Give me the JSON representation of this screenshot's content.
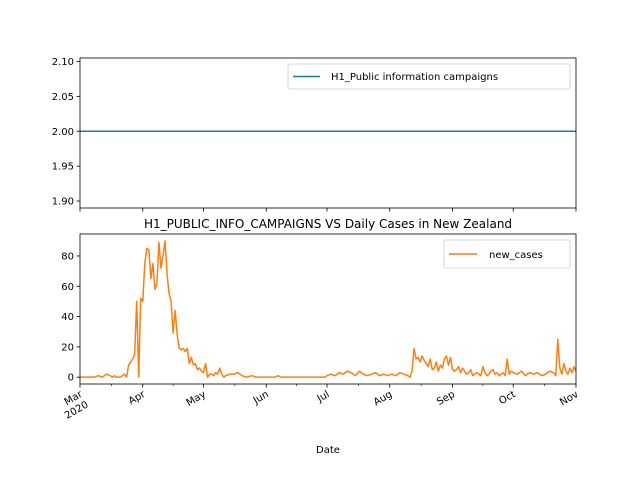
{
  "chart_data": [
    {
      "type": "line",
      "title": "",
      "xlabel": "",
      "ylabel": "",
      "ylim": [
        1.89,
        2.105
      ],
      "yticks": [
        1.9,
        1.95,
        2.0,
        2.05,
        2.1
      ],
      "ytick_labels": [
        "1.90",
        "1.95",
        "2.00",
        "2.05",
        "2.10"
      ],
      "legend_position": "top-right",
      "grid": false,
      "series": [
        {
          "name": "H1_Public information campaigns",
          "color": "#1f77b4",
          "points": [
            [
              "2020-03-01",
              2.0
            ],
            [
              "2020-11-01",
              2.0
            ]
          ]
        }
      ]
    },
    {
      "type": "line",
      "title": "H1_PUBLIC_INFO_CAMPAIGNS VS Daily Cases in New Zealand",
      "xlabel": "Date",
      "ylabel": "",
      "ylim": [
        -4.5,
        94.5
      ],
      "yticks": [
        0,
        20,
        40,
        60,
        80
      ],
      "ytick_labels": [
        "0",
        "20",
        "40",
        "60",
        "80"
      ],
      "xlim": [
        "2020-03-01",
        "2020-11-01"
      ],
      "xticks": [
        "2020-03-01",
        "2020-04-01",
        "2020-05-01",
        "2020-06-01",
        "2020-07-01",
        "2020-08-01",
        "2020-09-01",
        "2020-10-01",
        "2020-11-01"
      ],
      "xtick_labels": [
        "Mar\n2020",
        "Apr",
        "May",
        "Jun",
        "Jul",
        "Aug",
        "Sep",
        "Oct",
        "Nov"
      ],
      "legend_position": "top-right",
      "grid": false,
      "series": [
        {
          "name": "new_cases",
          "color": "#ff7f0e",
          "points": [
            [
              "2020-03-01",
              0
            ],
            [
              "2020-03-05",
              0
            ],
            [
              "2020-03-08",
              0
            ],
            [
              "2020-03-10",
              1
            ],
            [
              "2020-03-12",
              0
            ],
            [
              "2020-03-14",
              2
            ],
            [
              "2020-03-16",
              1
            ],
            [
              "2020-03-17",
              0
            ],
            [
              "2020-03-18",
              1
            ],
            [
              "2020-03-19",
              0
            ],
            [
              "2020-03-20",
              0
            ],
            [
              "2020-03-21",
              0
            ],
            [
              "2020-03-22",
              1
            ],
            [
              "2020-03-23",
              2
            ],
            [
              "2020-03-24",
              0
            ],
            [
              "2020-03-25",
              8
            ],
            [
              "2020-03-26",
              10
            ],
            [
              "2020-03-27",
              12
            ],
            [
              "2020-03-28",
              15
            ],
            [
              "2020-03-29",
              50
            ],
            [
              "2020-03-30",
              0
            ],
            [
              "2020-03-31",
              52
            ],
            [
              "2020-04-01",
              50
            ],
            [
              "2020-04-02",
              75
            ],
            [
              "2020-04-03",
              85
            ],
            [
              "2020-04-04",
              84
            ],
            [
              "2020-04-05",
              65
            ],
            [
              "2020-04-06",
              75
            ],
            [
              "2020-04-07",
              58
            ],
            [
              "2020-04-08",
              62
            ],
            [
              "2020-04-09",
              89
            ],
            [
              "2020-04-10",
              72
            ],
            [
              "2020-04-11",
              80
            ],
            [
              "2020-04-12",
              90
            ],
            [
              "2020-04-13",
              68
            ],
            [
              "2020-04-14",
              55
            ],
            [
              "2020-04-15",
              50
            ],
            [
              "2020-04-16",
              29
            ],
            [
              "2020-04-17",
              44
            ],
            [
              "2020-04-18",
              28
            ],
            [
              "2020-04-19",
              19
            ],
            [
              "2020-04-20",
              18
            ],
            [
              "2020-04-21",
              19
            ],
            [
              "2020-04-22",
              17
            ],
            [
              "2020-04-23",
              19
            ],
            [
              "2020-04-24",
              9
            ],
            [
              "2020-04-25",
              13
            ],
            [
              "2020-04-26",
              8
            ],
            [
              "2020-04-27",
              9
            ],
            [
              "2020-04-28",
              5
            ],
            [
              "2020-04-29",
              6
            ],
            [
              "2020-04-30",
              4
            ],
            [
              "2020-05-01",
              3
            ],
            [
              "2020-05-02",
              9
            ],
            [
              "2020-05-03",
              0
            ],
            [
              "2020-05-04",
              2
            ],
            [
              "2020-05-05",
              2
            ],
            [
              "2020-05-06",
              1
            ],
            [
              "2020-05-07",
              3
            ],
            [
              "2020-05-08",
              2
            ],
            [
              "2020-05-09",
              6
            ],
            [
              "2020-05-10",
              2
            ],
            [
              "2020-05-11",
              0
            ],
            [
              "2020-05-12",
              1
            ],
            [
              "2020-05-14",
              2
            ],
            [
              "2020-05-16",
              2
            ],
            [
              "2020-05-18",
              3
            ],
            [
              "2020-05-20",
              1
            ],
            [
              "2020-05-22",
              0
            ],
            [
              "2020-05-25",
              1
            ],
            [
              "2020-05-27",
              0
            ],
            [
              "2020-05-30",
              0
            ],
            [
              "2020-06-02",
              0
            ],
            [
              "2020-06-05",
              0
            ],
            [
              "2020-06-07",
              1
            ],
            [
              "2020-06-08",
              0
            ],
            [
              "2020-06-10",
              0
            ],
            [
              "2020-06-14",
              0
            ],
            [
              "2020-06-18",
              0
            ],
            [
              "2020-06-20",
              0
            ],
            [
              "2020-06-24",
              0
            ],
            [
              "2020-06-27",
              0
            ],
            [
              "2020-06-30",
              0
            ],
            [
              "2020-07-01",
              1
            ],
            [
              "2020-07-03",
              2
            ],
            [
              "2020-07-05",
              1
            ],
            [
              "2020-07-07",
              3
            ],
            [
              "2020-07-09",
              2
            ],
            [
              "2020-07-11",
              4
            ],
            [
              "2020-07-13",
              3
            ],
            [
              "2020-07-15",
              1
            ],
            [
              "2020-07-17",
              4
            ],
            [
              "2020-07-19",
              2
            ],
            [
              "2020-07-21",
              1
            ],
            [
              "2020-07-23",
              2
            ],
            [
              "2020-07-25",
              3
            ],
            [
              "2020-07-27",
              1
            ],
            [
              "2020-07-29",
              2
            ],
            [
              "2020-07-31",
              1
            ],
            [
              "2020-08-02",
              2
            ],
            [
              "2020-08-04",
              1
            ],
            [
              "2020-08-06",
              3
            ],
            [
              "2020-08-08",
              2
            ],
            [
              "2020-08-10",
              1
            ],
            [
              "2020-08-11",
              0
            ],
            [
              "2020-08-12",
              4
            ],
            [
              "2020-08-13",
              19
            ],
            [
              "2020-08-14",
              12
            ],
            [
              "2020-08-15",
              13
            ],
            [
              "2020-08-16",
              10
            ],
            [
              "2020-08-17",
              14
            ],
            [
              "2020-08-18",
              11
            ],
            [
              "2020-08-19",
              9
            ],
            [
              "2020-08-20",
              7
            ],
            [
              "2020-08-21",
              12
            ],
            [
              "2020-08-22",
              5
            ],
            [
              "2020-08-23",
              6
            ],
            [
              "2020-08-24",
              10
            ],
            [
              "2020-08-25",
              4
            ],
            [
              "2020-08-26",
              8
            ],
            [
              "2020-08-27",
              6
            ],
            [
              "2020-08-28",
              12
            ],
            [
              "2020-08-29",
              14
            ],
            [
              "2020-08-30",
              8
            ],
            [
              "2020-08-31",
              13
            ],
            [
              "2020-09-01",
              5
            ],
            [
              "2020-09-02",
              4
            ],
            [
              "2020-09-03",
              5
            ],
            [
              "2020-09-04",
              7
            ],
            [
              "2020-09-05",
              3
            ],
            [
              "2020-09-06",
              6
            ],
            [
              "2020-09-07",
              4
            ],
            [
              "2020-09-08",
              2
            ],
            [
              "2020-09-09",
              3
            ],
            [
              "2020-09-10",
              5
            ],
            [
              "2020-09-11",
              1
            ],
            [
              "2020-09-12",
              2
            ],
            [
              "2020-09-13",
              3
            ],
            [
              "2020-09-14",
              2
            ],
            [
              "2020-09-15",
              1
            ],
            [
              "2020-09-16",
              7
            ],
            [
              "2020-09-17",
              3
            ],
            [
              "2020-09-18",
              1
            ],
            [
              "2020-09-19",
              2
            ],
            [
              "2020-09-20",
              4
            ],
            [
              "2020-09-21",
              5
            ],
            [
              "2020-09-22",
              2
            ],
            [
              "2020-09-23",
              3
            ],
            [
              "2020-09-24",
              1
            ],
            [
              "2020-09-25",
              2
            ],
            [
              "2020-09-26",
              3
            ],
            [
              "2020-09-27",
              1
            ],
            [
              "2020-09-28",
              12
            ],
            [
              "2020-09-29",
              2
            ],
            [
              "2020-09-30",
              4
            ],
            [
              "2020-10-01",
              3
            ],
            [
              "2020-10-03",
              2
            ],
            [
              "2020-10-05",
              4
            ],
            [
              "2020-10-07",
              1
            ],
            [
              "2020-10-09",
              3
            ],
            [
              "2020-10-11",
              2
            ],
            [
              "2020-10-13",
              3
            ],
            [
              "2020-10-15",
              1
            ],
            [
              "2020-10-17",
              2
            ],
            [
              "2020-10-19",
              4
            ],
            [
              "2020-10-21",
              3
            ],
            [
              "2020-10-22",
              1
            ],
            [
              "2020-10-23",
              25
            ],
            [
              "2020-10-24",
              6
            ],
            [
              "2020-10-25",
              2
            ],
            [
              "2020-10-26",
              9
            ],
            [
              "2020-10-27",
              4
            ],
            [
              "2020-10-28",
              2
            ],
            [
              "2020-10-29",
              6
            ],
            [
              "2020-10-30",
              3
            ],
            [
              "2020-10-31",
              7
            ],
            [
              "2020-11-01",
              4
            ]
          ]
        }
      ]
    }
  ]
}
